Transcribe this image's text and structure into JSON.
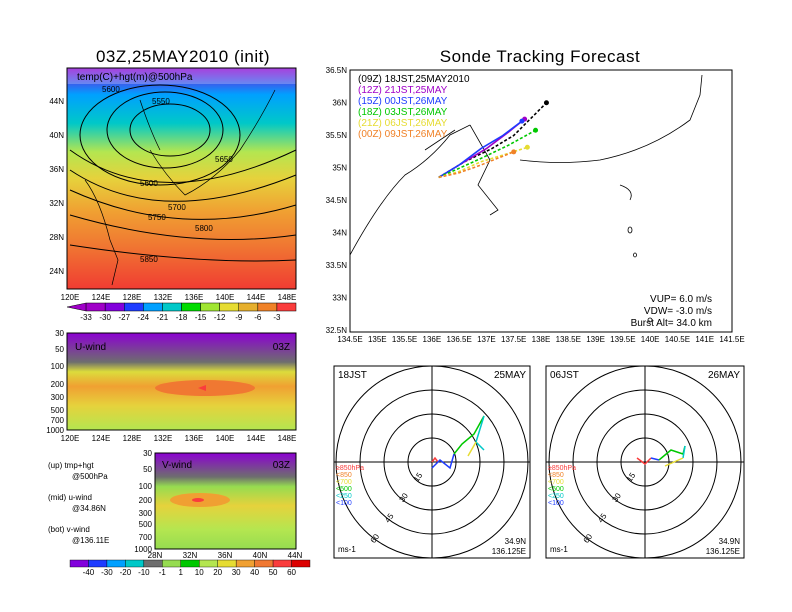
{
  "map_title": "03Z,25MAY2010 (init)",
  "main_title": "Sonde Tracking Forecast",
  "left_panel": {
    "label": "temp(C)+hgt(m)@500hPa",
    "lat_ticks": [
      "44N",
      "40N",
      "36N",
      "32N",
      "28N",
      "24N"
    ],
    "lon_ticks": [
      "120E",
      "124E",
      "128E",
      "132E",
      "136E",
      "140E",
      "144E",
      "148E"
    ],
    "contours": [
      "5600",
      "5550",
      "5650",
      "5600",
      "5700",
      "5750",
      "5800",
      "5850"
    ],
    "colorbar": [
      "-33",
      "-30",
      "-27",
      "-24",
      "-21",
      "-18",
      "-15",
      "-12",
      "-9",
      "-6",
      "-3"
    ],
    "colors": [
      "#a000c8",
      "#8200dc",
      "#1e3cff",
      "#00a0ff",
      "#00c8c8",
      "#00dc00",
      "#a0e632",
      "#e6dc32",
      "#e6af2d",
      "#f08228",
      "#fa3c3c"
    ]
  },
  "uwind_panel": {
    "label": "U-wind",
    "time": "03Z",
    "pressure_ticks": [
      "30",
      "50",
      "100",
      "200",
      "300",
      "500",
      "700",
      "1000"
    ],
    "lon_ticks": [
      "120E",
      "124E",
      "128E",
      "132E",
      "136E",
      "140E",
      "144E",
      "148E"
    ]
  },
  "vwind_panel": {
    "label": "V-wind",
    "time": "03Z",
    "pressure_ticks": [
      "30",
      "50",
      "100",
      "200",
      "300",
      "500",
      "700",
      "1000"
    ],
    "lat_ticks": [
      "28N",
      "32N",
      "36N",
      "40N",
      "44N"
    ],
    "colorbar": [
      "-40",
      "-30",
      "-20",
      "-10",
      "-1",
      "1",
      "10",
      "20",
      "30",
      "40",
      "50",
      "60"
    ]
  },
  "notes": [
    {
      "a": "(up)  tmp+hgt",
      "b": "@500hPa"
    },
    {
      "a": "(mid)  u-wind",
      "b": "@34.86N"
    },
    {
      "a": "(bot)  v-wind",
      "b": "@136.11E"
    }
  ],
  "track_map": {
    "lat_ticks": [
      "36.5N",
      "36N",
      "35.5N",
      "35N",
      "34.5N",
      "34N",
      "33.5N",
      "33N",
      "32.5N"
    ],
    "lon_ticks": [
      "134.5E",
      "135E",
      "135.5E",
      "136E",
      "136.5E",
      "137E",
      "137.5E",
      "138E",
      "138.5E",
      "139E",
      "139.5E",
      "140E",
      "140.5E",
      "141E",
      "141.5E"
    ],
    "legend": [
      {
        "label": "(09Z)  18JST,25MAY2010",
        "color": "#000000"
      },
      {
        "label": "(12Z)  21JST,25MAY",
        "color": "#a000c8"
      },
      {
        "label": "(15Z)  00JST,26MAY",
        "color": "#1e3cff"
      },
      {
        "label": "(18Z)  03JST,26MAY",
        "color": "#00c800"
      },
      {
        "label": "(21Z)  06JST,26MAY",
        "color": "#e6dc32"
      },
      {
        "label": "(00Z)  09JST,26MAY",
        "color": "#f08228"
      }
    ],
    "params": {
      "vup": "VUP=  6.0  m/s",
      "vdw": "VDW=  -3.0  m/s",
      "burst": "Burst Alt=  34.0  km"
    }
  },
  "hodographs": [
    {
      "time": "18JST",
      "date": "25MAY",
      "lat": "34.9N",
      "lon": "136.125E",
      "unit": "ms-1"
    },
    {
      "time": "06JST",
      "date": "26MAY",
      "lat": "34.9N",
      "lon": "136.125E",
      "unit": "ms-1"
    }
  ],
  "hodo_legend": [
    {
      "label": "≥850hPa",
      "color": "#fa3c3c"
    },
    {
      "label": "<850",
      "color": "#f08228"
    },
    {
      "label": "<700",
      "color": "#e6dc32"
    },
    {
      "label": "<500",
      "color": "#00c800"
    },
    {
      "label": "<250",
      "color": "#00c8c8"
    },
    {
      "label": "<100",
      "color": "#1e3cff"
    }
  ],
  "hodo_rings": [
    "15",
    "30",
    "45",
    "60"
  ],
  "chart_data": {
    "type": "line",
    "title": "Sonde Tracking Forecast",
    "xlim": [
      134.5,
      141.5
    ],
    "ylim": [
      32.5,
      36.5
    ],
    "series": [
      {
        "name": "(09Z) 18JST,25MAY2010",
        "color": "#000000",
        "x": [
          136.125,
          136.6,
          137.1,
          137.5,
          137.8,
          138.1
        ],
        "y": [
          34.86,
          35.1,
          35.3,
          35.5,
          35.75,
          36.0
        ]
      },
      {
        "name": "(12Z) 21JST,25MAY",
        "color": "#a000c8",
        "x": [
          136.125,
          136.5,
          137.0,
          137.4,
          137.7
        ],
        "y": [
          34.86,
          35.05,
          35.3,
          35.55,
          35.75
        ]
      },
      {
        "name": "(15Z) 00JST,26MAY",
        "color": "#1e3cff",
        "x": [
          136.125,
          136.5,
          136.9,
          137.3,
          137.65
        ],
        "y": [
          34.86,
          35.05,
          35.3,
          35.5,
          35.72
        ]
      },
      {
        "name": "(18Z) 03JST,26MAY",
        "color": "#00c800",
        "x": [
          136.125,
          136.5,
          136.9,
          137.4,
          137.9
        ],
        "y": [
          34.86,
          35.0,
          35.15,
          35.35,
          35.58
        ]
      },
      {
        "name": "(21Z) 06JST,26MAY",
        "color": "#e6dc32",
        "x": [
          136.125,
          136.5,
          136.9,
          137.3,
          137.75
        ],
        "y": [
          34.86,
          34.95,
          35.1,
          35.2,
          35.32
        ]
      },
      {
        "name": "(00Z) 09JST,26MAY",
        "color": "#f08228",
        "x": [
          136.125,
          136.5,
          136.9,
          137.2,
          137.5
        ],
        "y": [
          34.86,
          34.93,
          35.05,
          35.15,
          35.25
        ]
      }
    ]
  }
}
